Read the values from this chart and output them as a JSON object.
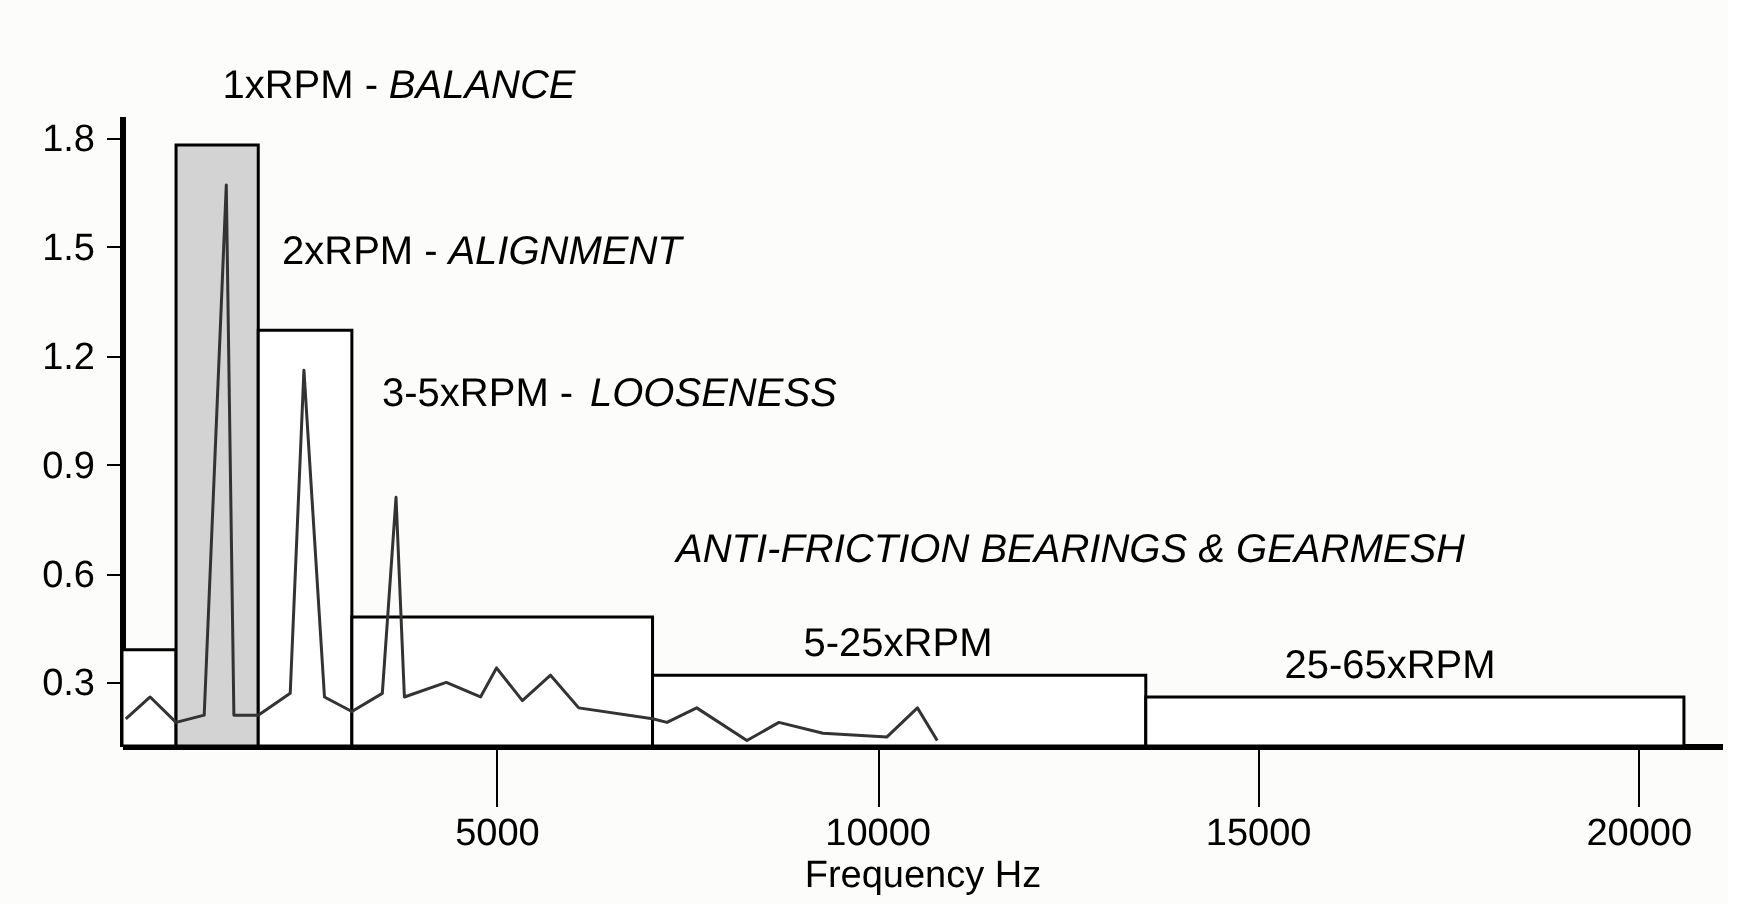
{
  "chart_data": {
    "type": "histogram",
    "xlabel": "Frequency Hz",
    "bins": [
      80,
      790,
      1870,
      3100,
      7050,
      13530,
      20600
    ],
    "values": [
      0.39,
      1.78,
      1.27,
      0.48,
      0.32,
      0.26
    ],
    "colors": [
      "#ffffff",
      "#d3d3d3",
      "#ffffff",
      "#ffffff",
      "#ffffff",
      "#ffffff"
    ],
    "series": [
      {
        "type": "line",
        "color": "#333333",
        "x": [
          130,
          450,
          790,
          1160,
          1450,
          1550,
          1870,
          2290,
          2470,
          2740,
          3100,
          3500,
          3680,
          3790,
          4340,
          4790,
          5000,
          5340,
          5710,
          6080,
          7050,
          7240,
          7630,
          8290,
          8710,
          9290,
          10130,
          10530,
          10790
        ],
        "values": [
          0.2,
          0.26,
          0.19,
          0.21,
          1.67,
          0.21,
          0.21,
          0.27,
          1.16,
          0.26,
          0.22,
          0.27,
          0.81,
          0.26,
          0.3,
          0.26,
          0.34,
          0.25,
          0.32,
          0.23,
          0.2,
          0.19,
          0.23,
          0.14,
          0.19,
          0.16,
          0.15,
          0.23,
          0.14
        ]
      }
    ],
    "xlim": [
      80,
      21100
    ],
    "xticks": [
      5000,
      10000,
      15000,
      20000
    ],
    "ylim": [
      0.125,
      1.86
    ],
    "yticks": [
      0.3,
      0.6,
      0.9,
      1.2,
      1.5,
      1.8
    ],
    "grid": false,
    "annotations": [
      "1xRPM - BALANCE",
      "2xRPM - ALIGNMENT",
      "3-5xRPM - LOOSENESS",
      "ANTI-FRICTION BEARINGS & GEARMESH",
      "5-25xRPM",
      "25-65xRPM"
    ]
  }
}
